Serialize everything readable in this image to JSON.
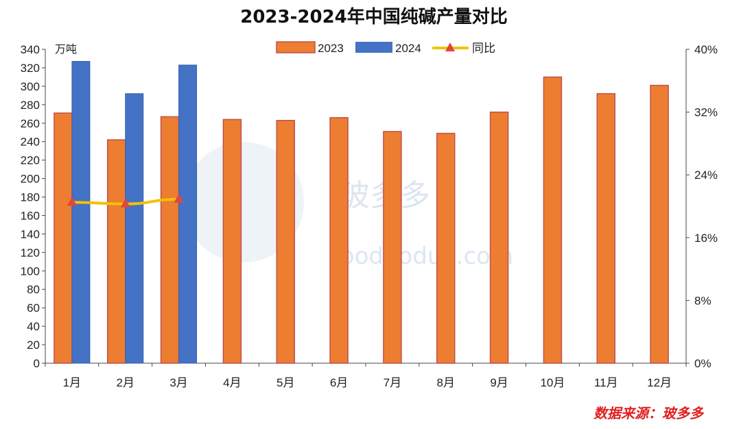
{
  "chart_data": {
    "type": "bar",
    "title": "2023-2024年中国纯碱产量对比",
    "unit_left": "万吨",
    "categories": [
      "1月",
      "2月",
      "3月",
      "4月",
      "5月",
      "6月",
      "7月",
      "8月",
      "9月",
      "10月",
      "11月",
      "12月"
    ],
    "series": [
      {
        "name": "2023",
        "type": "bar",
        "axis": "left",
        "color": "#ed7d31",
        "border": "#c0504d",
        "values": [
          271,
          242,
          267,
          264,
          263,
          266,
          251,
          249,
          272,
          310,
          292,
          301
        ]
      },
      {
        "name": "2024",
        "type": "bar",
        "axis": "left",
        "color": "#4472c4",
        "border": "#3a62a8",
        "values": [
          327,
          292,
          323,
          null,
          null,
          null,
          null,
          null,
          null,
          null,
          null,
          null
        ]
      },
      {
        "name": "同比",
        "type": "line",
        "axis": "right",
        "color": "#f2c200",
        "marker_color": "#e0463c",
        "values": [
          20.5,
          20.3,
          20.9,
          null,
          null,
          null,
          null,
          null,
          null,
          null,
          null,
          null
        ]
      }
    ],
    "y_left": {
      "min": 0,
      "max": 340,
      "step": 20
    },
    "y_right": {
      "min": 0,
      "max": 40,
      "step": 8,
      "suffix": "%"
    },
    "grid": false,
    "legend_position": "top-center"
  },
  "watermark": {
    "main": "玻多多",
    "sub": "boduoduo.com"
  },
  "source_label": "数据来源：玻多多"
}
